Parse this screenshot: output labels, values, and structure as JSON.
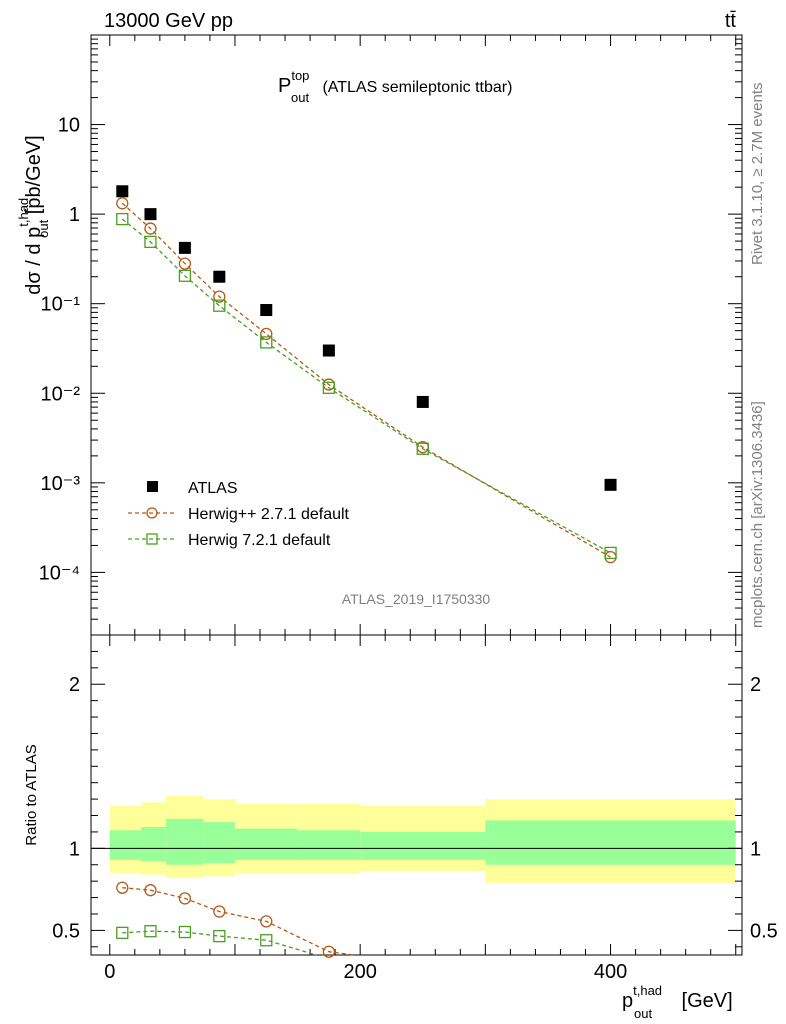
{
  "header": {
    "left": "13000 GeV pp",
    "right": "tt̄"
  },
  "title": {
    "main": "P",
    "sup": "top",
    "sub": "out",
    "rest": " (ATLAS semileptonic ttbar)"
  },
  "side_text": {
    "rivet": "Rivet 3.1.10, ≥ 2.7M events",
    "mcplots": "mcplots.cern.ch [arXiv:1306.3436]"
  },
  "watermark": "ATLAS_2019_I1750330",
  "chart_data": [
    {
      "type": "scatter",
      "panel": "main",
      "ylabel": {
        "pre": "dσ / d p",
        "sup": "t,had",
        "sub": "out",
        "post": " [pb/GeV]"
      },
      "yscale": "log",
      "ylim": [
        2e-05,
        100
      ],
      "xlim": [
        -15,
        505
      ],
      "ytick_labels": [
        "10",
        "1",
        "10⁻¹",
        "10⁻²",
        "10⁻³",
        "10⁻⁴"
      ],
      "legend_position": "bottom-left",
      "series": [
        {
          "name": "ATLAS",
          "style": "square-filled",
          "color": "#000000",
          "x": [
            10,
            32.5,
            60,
            87.5,
            125,
            175,
            250,
            400
          ],
          "y": [
            1.8,
            1.0,
            0.42,
            0.2,
            0.085,
            0.03,
            0.008,
            0.00095
          ]
        },
        {
          "name": "Herwig++ 2.7.1 default",
          "style": "circle-open-dashed",
          "color": "#b25a19",
          "x": [
            10,
            32.5,
            60,
            87.5,
            125,
            175,
            250,
            400
          ],
          "y": [
            1.32,
            0.69,
            0.28,
            0.12,
            0.046,
            0.0125,
            0.0025,
            0.000148
          ]
        },
        {
          "name": "Herwig 7.2.1 default",
          "style": "square-open-dashed",
          "color": "#4a9e23",
          "x": [
            10,
            32.5,
            60,
            87.5,
            125,
            175,
            250,
            400
          ],
          "y": [
            0.88,
            0.49,
            0.205,
            0.095,
            0.037,
            0.0115,
            0.0024,
            0.000165
          ]
        }
      ]
    },
    {
      "type": "line",
      "panel": "ratio",
      "ylabel": "Ratio to ATLAS",
      "ylim": [
        0.35,
        2.3
      ],
      "yticks": [
        0.5,
        1,
        2
      ],
      "ytick_labels": [
        "0.5",
        "1",
        "2"
      ],
      "xlim": [
        -15,
        505
      ],
      "xticks": [
        0,
        200,
        400
      ],
      "xtick_labels": [
        "0",
        "200",
        "400"
      ],
      "xlabel": {
        "pre": "p",
        "sup": "t,had",
        "sub": "out",
        "post": " [GeV]"
      },
      "bands": {
        "edges": [
          0,
          25,
          45,
          75,
          100,
          150,
          200,
          300,
          500
        ],
        "yellow_low": [
          0.85,
          0.84,
          0.82,
          0.83,
          0.85,
          0.85,
          0.86,
          0.79
        ],
        "yellow_high": [
          1.26,
          1.28,
          1.32,
          1.3,
          1.27,
          1.27,
          1.26,
          1.3
        ],
        "green_low": [
          0.93,
          0.92,
          0.9,
          0.91,
          0.93,
          0.93,
          0.93,
          0.9
        ],
        "green_high": [
          1.11,
          1.13,
          1.18,
          1.16,
          1.12,
          1.11,
          1.1,
          1.17
        ]
      },
      "series": [
        {
          "name": "Herwig++ 2.7.1 default",
          "color": "#b25a19",
          "marker": "circle",
          "x": [
            10,
            32.5,
            60,
            87.5,
            125,
            175,
            195
          ],
          "y": [
            0.76,
            0.745,
            0.695,
            0.615,
            0.555,
            0.37,
            0.34
          ]
        },
        {
          "name": "Herwig 7.2.1 default",
          "color": "#4a9e23",
          "marker": "square",
          "x": [
            10,
            32.5,
            60,
            87.5,
            125,
            165
          ],
          "y": [
            0.485,
            0.495,
            0.49,
            0.465,
            0.44,
            0.35
          ]
        }
      ]
    }
  ]
}
